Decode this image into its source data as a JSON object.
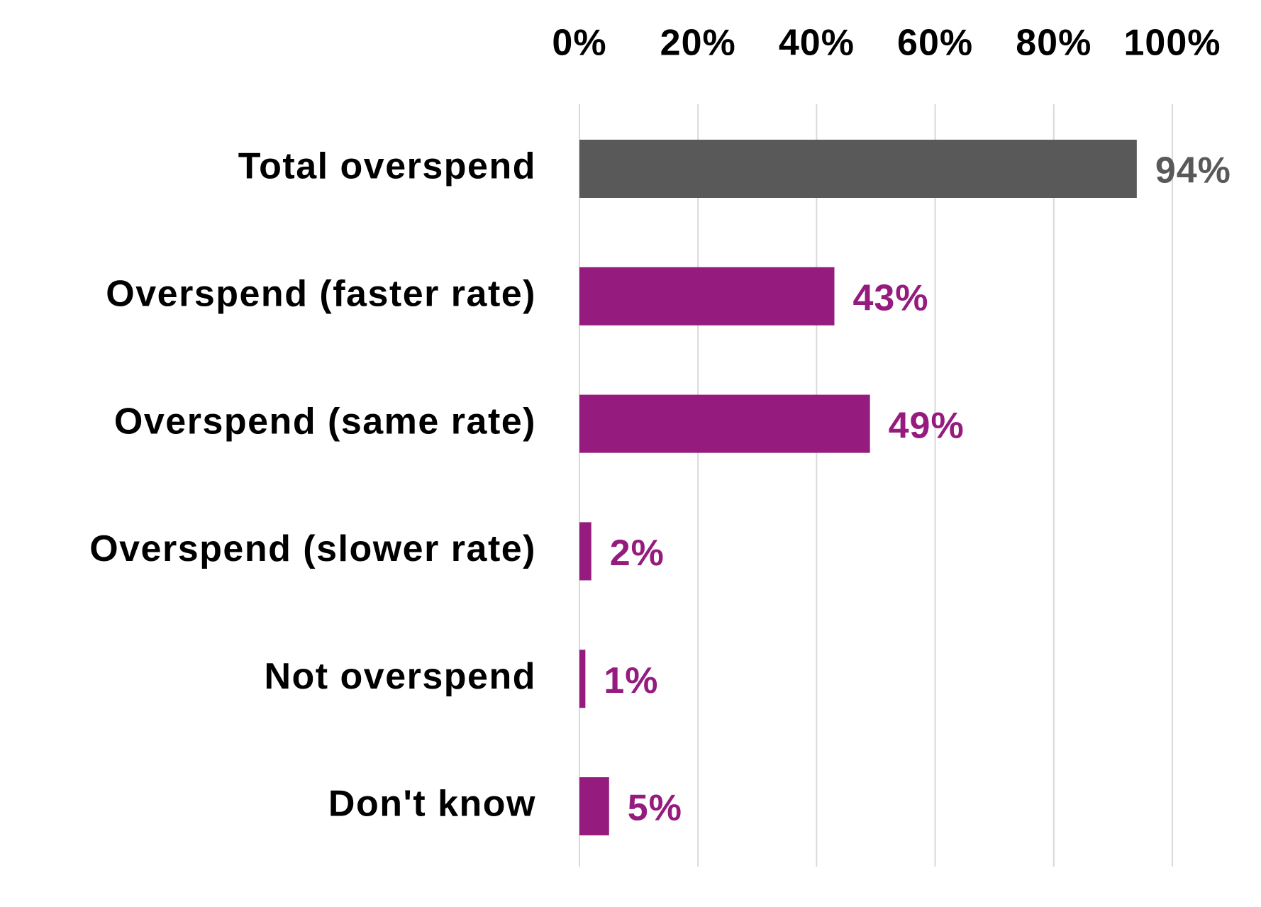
{
  "chart_data": {
    "type": "bar",
    "orientation": "horizontal",
    "categories": [
      "Total overspend",
      "Overspend (faster rate)",
      "Overspend (same rate)",
      "Overspend (slower rate)",
      "Not overspend",
      "Don't know"
    ],
    "values": [
      94,
      43,
      49,
      2,
      1,
      5
    ],
    "value_labels": [
      "94%",
      "43%",
      "49%",
      "2%",
      "1%",
      "5%"
    ],
    "colors": [
      "#595959",
      "#951b7e",
      "#951b7e",
      "#951b7e",
      "#951b7e",
      "#951b7e"
    ],
    "xlim": [
      0,
      100
    ],
    "xticks": [
      {
        "value": 0,
        "label": "0%"
      },
      {
        "value": 20,
        "label": "20%"
      },
      {
        "value": 40,
        "label": "40%"
      },
      {
        "value": 60,
        "label": "60%"
      },
      {
        "value": 80,
        "label": "80%"
      },
      {
        "value": 100,
        "label": "100%"
      }
    ],
    "grid": true
  }
}
